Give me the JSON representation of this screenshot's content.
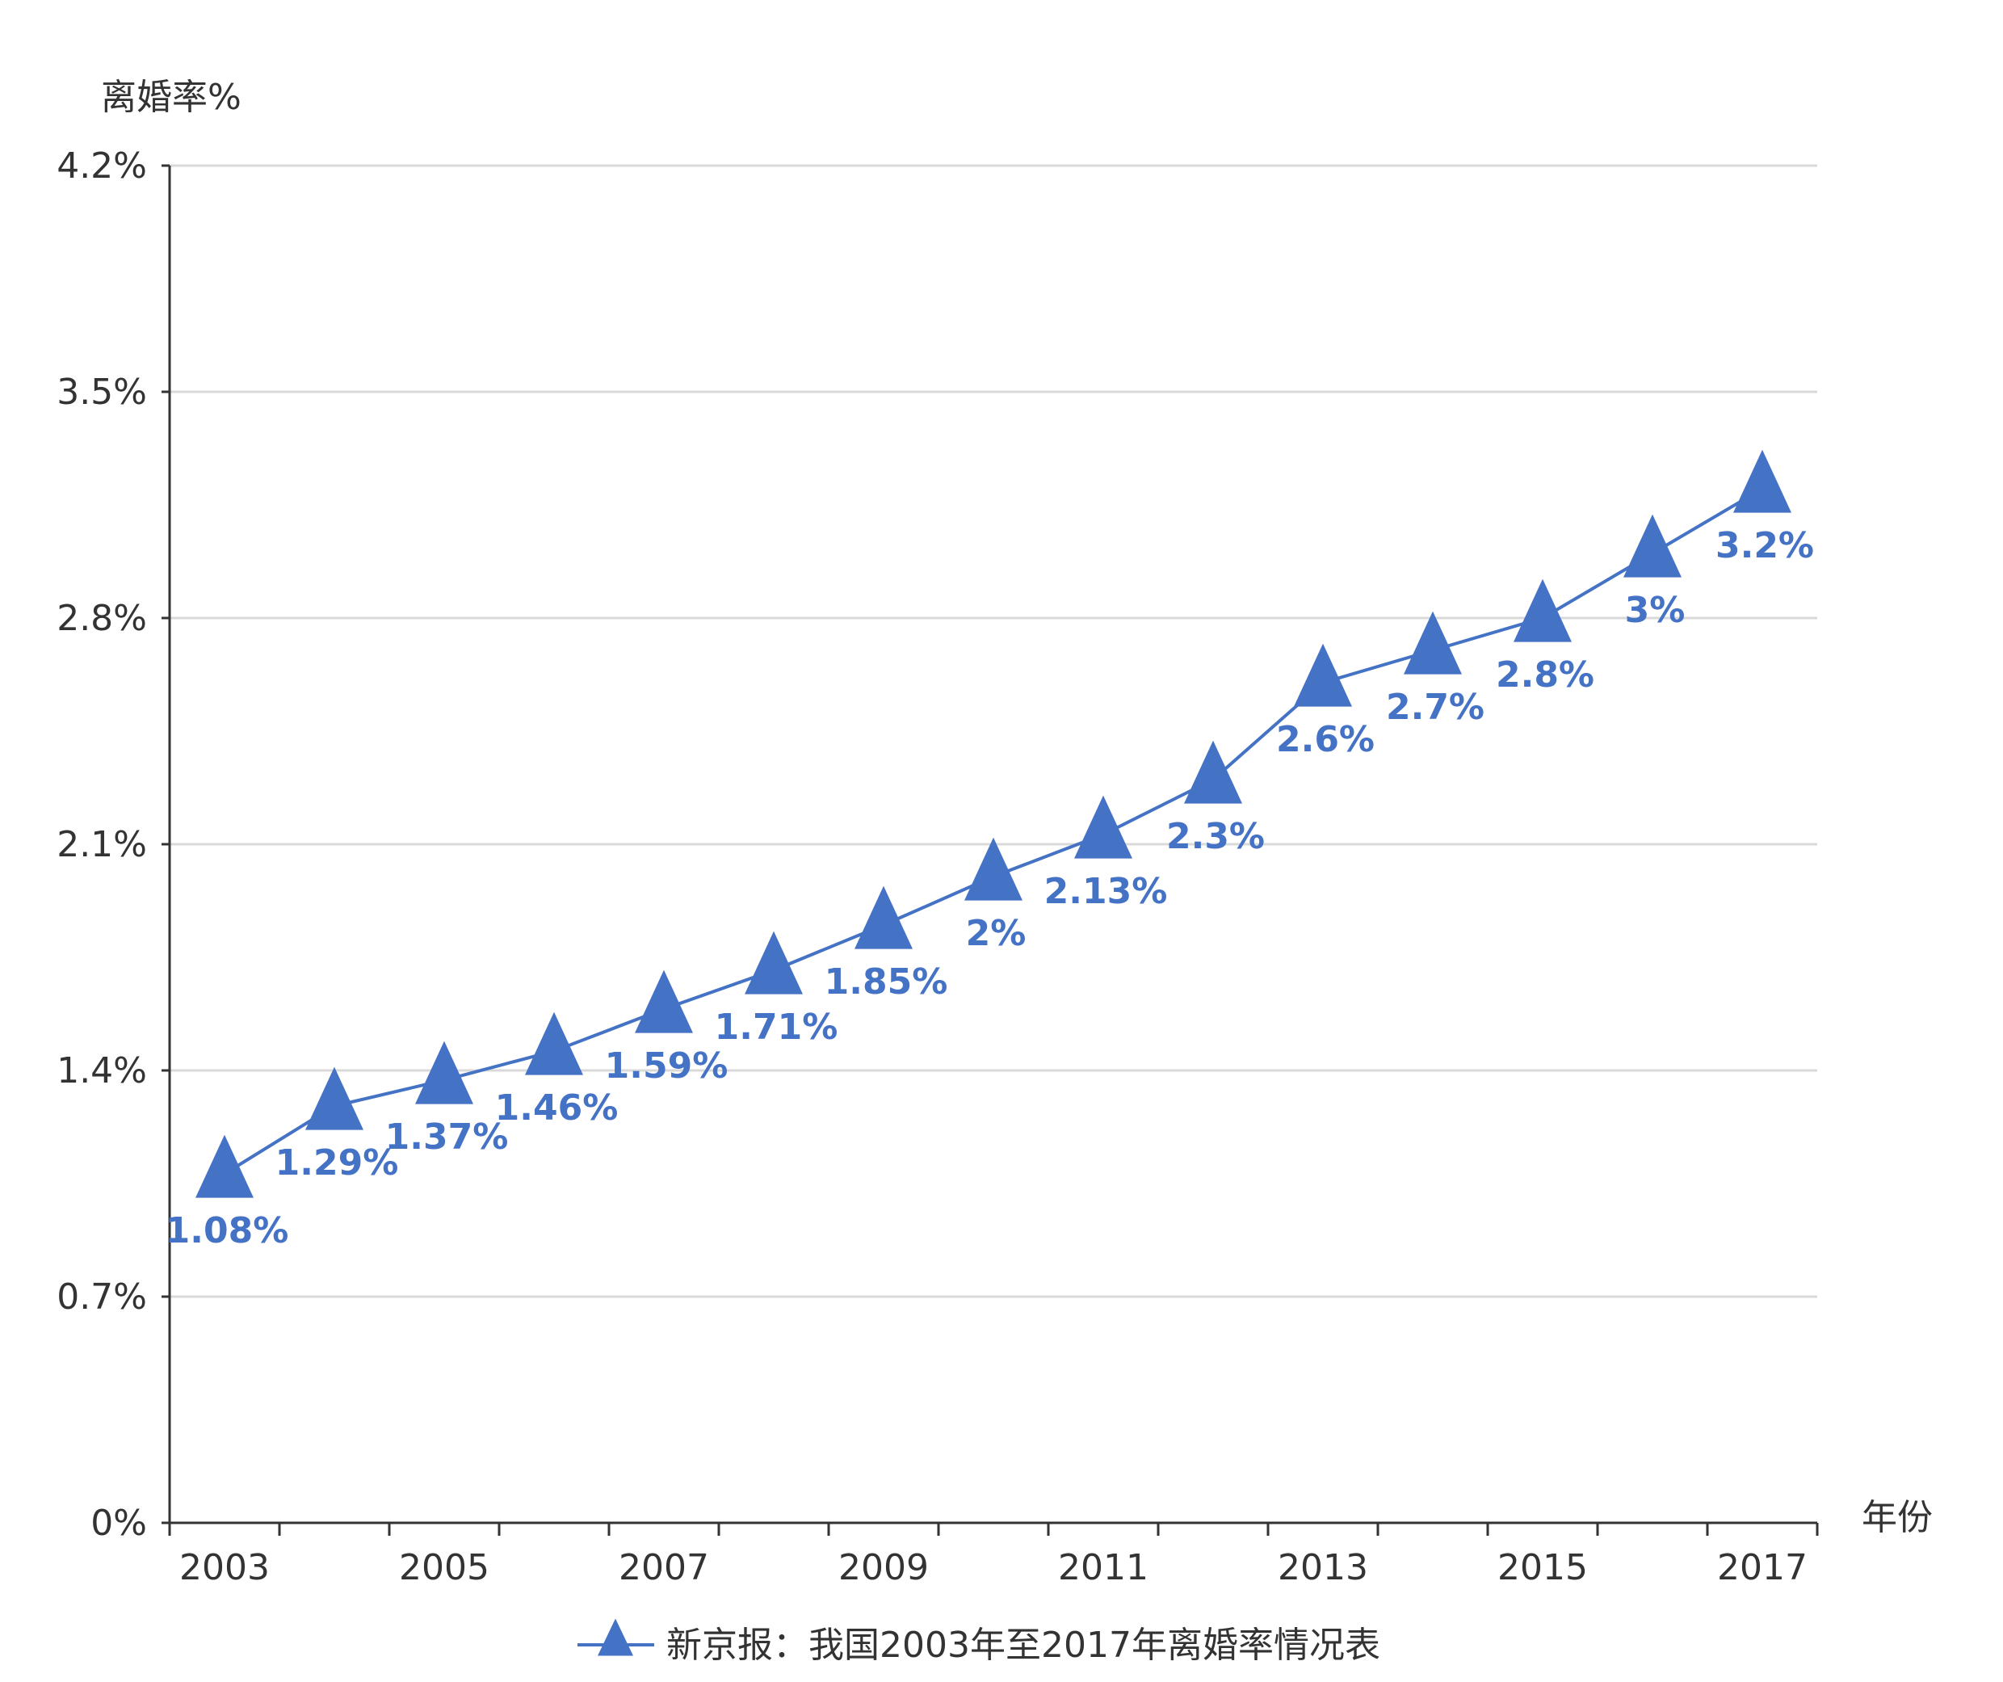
{
  "chart_data": {
    "type": "line",
    "ylabel": "离婚率%",
    "xlabel": "年份",
    "ylim": [
      0,
      4.2
    ],
    "y_ticks": [
      "0%",
      "0.7%",
      "1.4%",
      "2.1%",
      "2.8%",
      "3.5%",
      "4.2%"
    ],
    "x_tick_labels": [
      "2003",
      "2005",
      "2007",
      "2009",
      "2011",
      "2013",
      "2015",
      "2017"
    ],
    "marker": "triangle",
    "grid": true,
    "legend_position": "bottom",
    "colors": {
      "series": "#4472c4",
      "grid": "#d9d9d9",
      "axis": "#333333"
    },
    "series": [
      {
        "name": "新京报：我国2003年至2017年离婚率情况表",
        "x": [
          "2003",
          "2004",
          "2005",
          "2006",
          "2007",
          "2008",
          "2009",
          "2010",
          "2011",
          "2012",
          "2013",
          "2014",
          "2015",
          "2016",
          "2017"
        ],
        "values": [
          1.08,
          1.29,
          1.37,
          1.46,
          1.59,
          1.71,
          1.85,
          2.0,
          2.13,
          2.3,
          2.6,
          2.7,
          2.8,
          3.0,
          3.2
        ],
        "labels": [
          "1.08%",
          "1.29%",
          "1.37%",
          "1.46%",
          "1.59%",
          "1.71%",
          "1.85%",
          "2%",
          "2.13%",
          "2.3%",
          "2.6%",
          "2.7%",
          "2.8%",
          "3%",
          "3.2%"
        ]
      }
    ]
  }
}
